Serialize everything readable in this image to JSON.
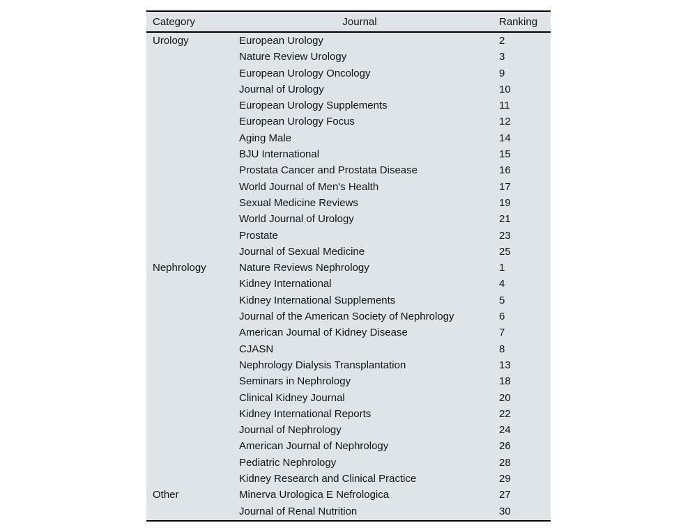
{
  "table": {
    "columns": [
      "Category",
      "Journal",
      "Ranking"
    ],
    "colors": {
      "background": "#dee4e8",
      "rule": "#000000",
      "text": "#141414",
      "page_background": "#ffffff"
    },
    "groups": [
      {
        "category": "Urology",
        "rows": [
          {
            "journal": "European Urology",
            "ranking": "2"
          },
          {
            "journal": "Nature Review Urology",
            "ranking": "3"
          },
          {
            "journal": "European Urology Oncology",
            "ranking": "9"
          },
          {
            "journal": "Journal of Urology",
            "ranking": "10"
          },
          {
            "journal": "European Urology Supplements",
            "ranking": "11"
          },
          {
            "journal": "European Urology Focus",
            "ranking": "12"
          },
          {
            "journal": "Aging Male",
            "ranking": "14"
          },
          {
            "journal": "BJU International",
            "ranking": "15"
          },
          {
            "journal": "Prostata Cancer and Prostata Disease",
            "ranking": "16"
          },
          {
            "journal": "World Journal of Men's Health",
            "ranking": "17"
          },
          {
            "journal": "Sexual Medicine Reviews",
            "ranking": "19"
          },
          {
            "journal": "World Journal of Urology",
            "ranking": "21"
          },
          {
            "journal": "Prostate",
            "ranking": "23"
          },
          {
            "journal": "Journal of Sexual Medicine",
            "ranking": "25"
          }
        ]
      },
      {
        "category": "Nephrology",
        "rows": [
          {
            "journal": "Nature Reviews Nephrology",
            "ranking": "1"
          },
          {
            "journal": "Kidney International",
            "ranking": "4"
          },
          {
            "journal": "Kidney International Supplements",
            "ranking": "5"
          },
          {
            "journal": "Journal of the American Society of Nephrology",
            "ranking": "6"
          },
          {
            "journal": "American Journal of Kidney Disease",
            "ranking": "7"
          },
          {
            "journal": "CJASN",
            "ranking": "8"
          },
          {
            "journal": "Nephrology Dialysis Transplantation",
            "ranking": "13"
          },
          {
            "journal": "Seminars in Nephrology",
            "ranking": "18"
          },
          {
            "journal": "Clinical Kidney Journal",
            "ranking": "20"
          },
          {
            "journal": "Kidney International Reports",
            "ranking": "22"
          },
          {
            "journal": "Journal of Nephrology",
            "ranking": "24"
          },
          {
            "journal": "American Journal of Nephrology",
            "ranking": "26"
          },
          {
            "journal": "Pediatric Nephrology",
            "ranking": "28"
          },
          {
            "journal": "Kidney Research and Clinical Practice",
            "ranking": "29"
          }
        ]
      },
      {
        "category": "Other",
        "rows": [
          {
            "journal": "Minerva Urologica E Nefrologica",
            "ranking": "27"
          },
          {
            "journal": "Journal of Renal Nutrition",
            "ranking": "30"
          }
        ]
      }
    ]
  }
}
